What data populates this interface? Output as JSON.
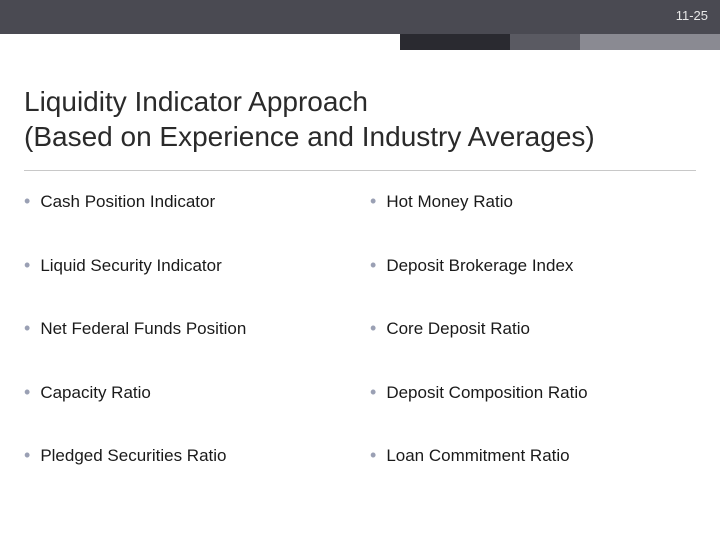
{
  "slide_number": "11-25",
  "title_line1": "Liquidity Indicator Approach",
  "title_line2": "(Based on Experience and Industry Averages)",
  "colors": {
    "header_bg": "#4a4a52",
    "accent1": "#2a2a30",
    "accent2": "#5a5a62",
    "accent3": "#8a8a92",
    "bullet": "#9aa0b4",
    "text": "#1a1a1a",
    "title_text": "#2a2a2a",
    "divider": "#c8c8c8",
    "background": "#ffffff"
  },
  "typography": {
    "title_fontsize": 28,
    "item_fontsize": 17,
    "slide_number_fontsize": 13,
    "font_family": "Verdana"
  },
  "left_column": [
    "Cash Position Indicator",
    "Liquid Security Indicator",
    "Net Federal Funds Position",
    "Capacity Ratio",
    "Pledged Securities Ratio"
  ],
  "right_column": [
    "Hot Money Ratio",
    "Deposit Brokerage Index",
    "Core Deposit Ratio",
    "Deposit Composition Ratio",
    "Loan Commitment Ratio"
  ]
}
